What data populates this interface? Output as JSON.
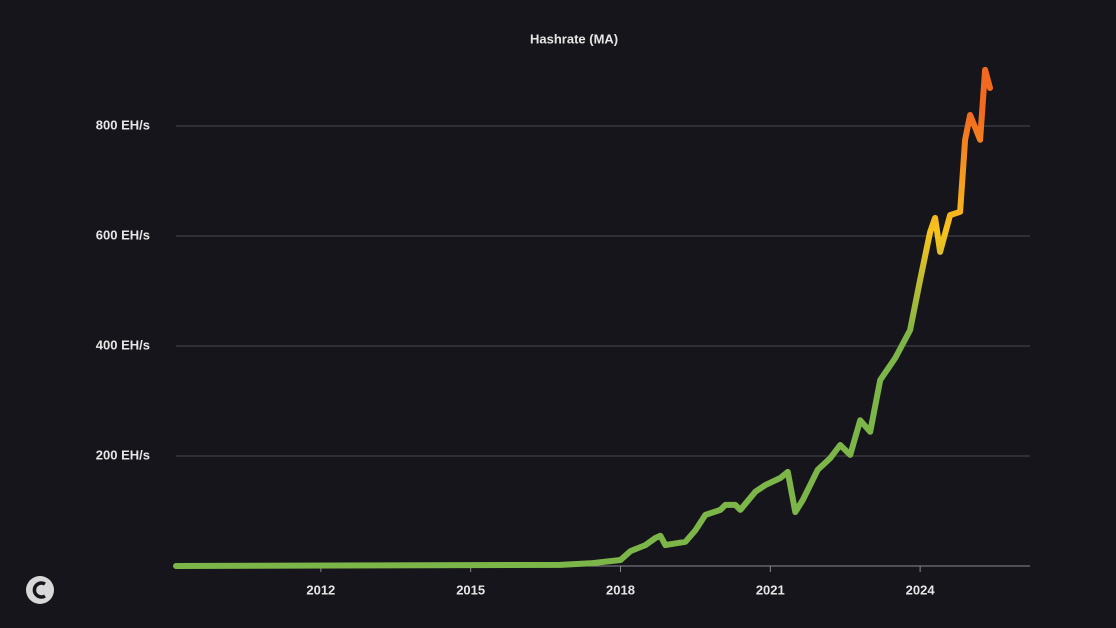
{
  "chart_data": {
    "type": "line",
    "xlim": [
      2009.1,
      2026.2
    ],
    "xticks": [
      2012,
      2015,
      2018,
      2021,
      2024
    ],
    "ylim": [
      0,
      920
    ],
    "yticks": [
      {
        "value": 200,
        "label": "200 EH/s"
      },
      {
        "value": 400,
        "label": "400 EH/s"
      },
      {
        "value": 600,
        "label": "600 EH/s"
      },
      {
        "value": 800,
        "label": "800 EH/s"
      }
    ],
    "grid": true,
    "legend": "top",
    "x": [
      2009.1,
      2016.8,
      2017.4,
      2018.0,
      2018.2,
      2018.5,
      2018.7,
      2018.8,
      2018.9,
      2019.3,
      2019.5,
      2019.7,
      2020.0,
      2020.1,
      2020.3,
      2020.4,
      2020.7,
      2020.9,
      2021.2,
      2021.35,
      2021.5,
      2021.65,
      2021.95,
      2022.2,
      2022.4,
      2022.6,
      2022.8,
      2023.0,
      2023.2,
      2023.5,
      2023.8,
      2024.0,
      2024.2,
      2024.3,
      2024.4,
      2024.6,
      2024.8,
      2024.9,
      2025.0,
      2025.2,
      2025.3,
      2025.4
    ],
    "series": [
      {
        "name": "Hashrate (MA)",
        "color": [
          "#7cb548",
          "#f7c21e",
          "#f26a1f"
        ],
        "values": [
          0,
          2,
          5,
          11,
          27,
          38,
          51,
          55,
          38,
          44,
          65,
          93,
          102,
          111,
          111,
          102,
          135,
          147,
          160,
          171,
          98,
          120,
          175,
          196,
          220,
          202,
          265,
          244,
          338,
          378,
          429,
          520,
          607,
          633,
          571,
          638,
          644,
          775,
          820,
          775,
          902,
          869
        ]
      }
    ]
  }
}
